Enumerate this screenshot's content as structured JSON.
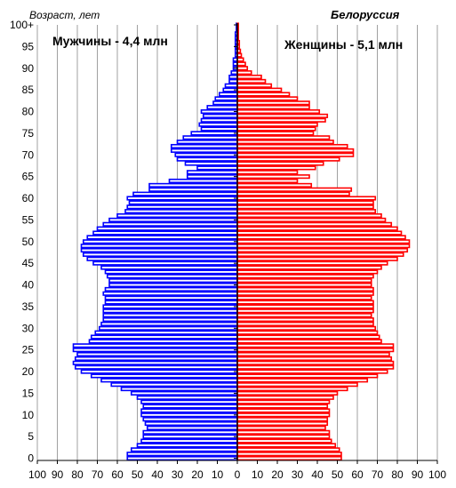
{
  "chart_data": {
    "type": "bar",
    "orientation": "horizontal-population-pyramid",
    "title": "Белоруссия",
    "ylabel": "Возраст, лет",
    "xlabel": "",
    "xlim": [
      -100,
      100
    ],
    "x_tick_values": [
      -100,
      -90,
      -80,
      -70,
      -60,
      -50,
      -40,
      -30,
      -20,
      -10,
      0,
      10,
      20,
      30,
      40,
      50,
      60,
      70,
      80,
      90,
      100
    ],
    "x_tick_labels": [
      "100",
      "90",
      "80",
      "70",
      "60",
      "50",
      "40",
      "30",
      "20",
      "10",
      "0",
      "10",
      "20",
      "30",
      "40",
      "50",
      "60",
      "70",
      "80",
      "90",
      "100"
    ],
    "y_tick_values": [
      0,
      5,
      10,
      15,
      20,
      25,
      30,
      35,
      40,
      45,
      50,
      55,
      60,
      65,
      70,
      75,
      80,
      85,
      90,
      95,
      100
    ],
    "y_tick_labels": [
      "0",
      "5",
      "10",
      "15",
      "20",
      "25",
      "30",
      "35",
      "40",
      "45",
      "50",
      "55",
      "60",
      "65",
      "70",
      "75",
      "80",
      "85",
      "90",
      "95",
      "100+"
    ],
    "grid": "vertical",
    "colors": {
      "male": "#0000ff",
      "female": "#ff0000",
      "axis": "#000000",
      "grid": "#a0a0a0"
    },
    "ages": [
      0,
      1,
      2,
      3,
      4,
      5,
      6,
      7,
      8,
      9,
      10,
      11,
      12,
      13,
      14,
      15,
      16,
      17,
      18,
      19,
      20,
      21,
      22,
      23,
      24,
      25,
      26,
      27,
      28,
      29,
      30,
      31,
      32,
      33,
      34,
      35,
      36,
      37,
      38,
      39,
      40,
      41,
      42,
      43,
      44,
      45,
      46,
      47,
      48,
      49,
      50,
      51,
      52,
      53,
      54,
      55,
      56,
      57,
      58,
      59,
      60,
      61,
      62,
      63,
      64,
      65,
      66,
      67,
      68,
      69,
      70,
      71,
      72,
      73,
      74,
      75,
      76,
      77,
      78,
      79,
      80,
      81,
      82,
      83,
      84,
      85,
      86,
      87,
      88,
      89,
      90,
      91,
      92,
      93,
      94,
      95,
      96,
      97,
      98,
      99,
      100
    ],
    "series": [
      {
        "name": "Мужчины - 4,4 млн",
        "side": "left",
        "values": [
          55,
          55,
          53,
          50,
          48,
          47,
          47,
          45,
          46,
          47,
          48,
          48,
          47,
          48,
          50,
          53,
          58,
          63,
          68,
          73,
          78,
          81,
          82,
          81,
          80,
          82,
          82,
          74,
          73,
          71,
          69,
          68,
          67,
          67,
          67,
          67,
          66,
          66,
          67,
          66,
          64,
          64,
          65,
          66,
          68,
          72,
          75,
          77,
          78,
          78,
          77,
          75,
          72,
          70,
          67,
          64,
          60,
          56,
          55,
          54,
          55,
          52,
          44,
          44,
          34,
          25,
          25,
          20,
          26,
          30,
          31,
          33,
          33,
          30,
          27,
          23,
          18,
          19,
          18,
          17,
          18,
          15,
          12,
          11,
          9,
          7,
          6,
          4,
          4,
          3,
          2,
          2,
          2,
          1,
          1,
          1,
          1,
          1,
          1,
          0.5,
          0.5
        ]
      },
      {
        "name": "Женщины - 5,1 млн",
        "side": "right",
        "values": [
          52,
          52,
          51,
          49,
          47,
          46,
          46,
          44,
          45,
          45,
          46,
          46,
          45,
          46,
          48,
          50,
          55,
          60,
          65,
          70,
          75,
          78,
          78,
          77,
          76,
          78,
          78,
          72,
          71,
          70,
          69,
          68,
          68,
          67,
          68,
          68,
          68,
          67,
          68,
          68,
          67,
          67,
          68,
          70,
          72,
          75,
          80,
          83,
          85,
          86,
          86,
          84,
          82,
          80,
          77,
          74,
          72,
          69,
          68,
          68,
          69,
          56,
          57,
          37,
          30,
          36,
          30,
          39,
          43,
          51,
          58,
          58,
          55,
          48,
          46,
          38,
          39,
          40,
          44,
          45,
          41,
          36,
          36,
          30,
          26,
          22,
          17,
          14,
          12,
          7,
          5,
          4,
          3,
          2,
          1.5,
          1,
          1,
          0.5,
          0.5,
          0.5,
          0.5
        ]
      }
    ]
  }
}
